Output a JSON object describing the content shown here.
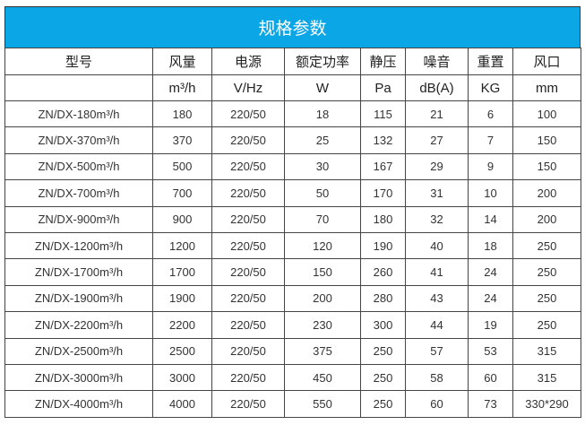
{
  "title": "规格参数",
  "headers": [
    "型号",
    "风量",
    "电源",
    "额定功率",
    "静压",
    "噪音",
    "重置",
    "风口"
  ],
  "units": [
    "",
    "m³/h",
    "V/Hz",
    "W",
    "Pa",
    "dB(A)",
    "KG",
    "mm"
  ],
  "rows": [
    [
      "ZN/DX-180m³/h",
      "180",
      "220/50",
      "18",
      "115",
      "21",
      "6",
      "100"
    ],
    [
      "ZN/DX-370m³/h",
      "370",
      "220/50",
      "25",
      "132",
      "27",
      "7",
      "150"
    ],
    [
      "ZN/DX-500m³/h",
      "500",
      "220/50",
      "30",
      "167",
      "29",
      "9",
      "150"
    ],
    [
      "ZN/DX-700m³/h",
      "700",
      "220/50",
      "50",
      "170",
      "31",
      "10",
      "200"
    ],
    [
      "ZN/DX-900m³/h",
      "900",
      "220/50",
      "70",
      "180",
      "32",
      "14",
      "200"
    ],
    [
      "ZN/DX-1200m³/h",
      "1200",
      "220/50",
      "120",
      "190",
      "40",
      "18",
      "250"
    ],
    [
      "ZN/DX-1700m³/h",
      "1700",
      "220/50",
      "150",
      "260",
      "41",
      "24",
      "250"
    ],
    [
      "ZN/DX-1900m³/h",
      "1900",
      "220/50",
      "200",
      "280",
      "43",
      "24",
      "250"
    ],
    [
      "ZN/DX-2200m³/h",
      "2200",
      "220/50",
      "230",
      "300",
      "44",
      "19",
      "250"
    ],
    [
      "ZN/DX-2500m³/h",
      "2500",
      "220/50",
      "375",
      "250",
      "57",
      "53",
      "315"
    ],
    [
      "ZN/DX-3000m³/h",
      "3000",
      "220/50",
      "450",
      "250",
      "58",
      "60",
      "315"
    ],
    [
      "ZN/DX-4000m³/h",
      "4000",
      "220/50",
      "550",
      "250",
      "60",
      "73",
      "330*290"
    ]
  ],
  "colors": {
    "title_bg": "#0aa6e6",
    "title_text": "#ffffff"
  }
}
